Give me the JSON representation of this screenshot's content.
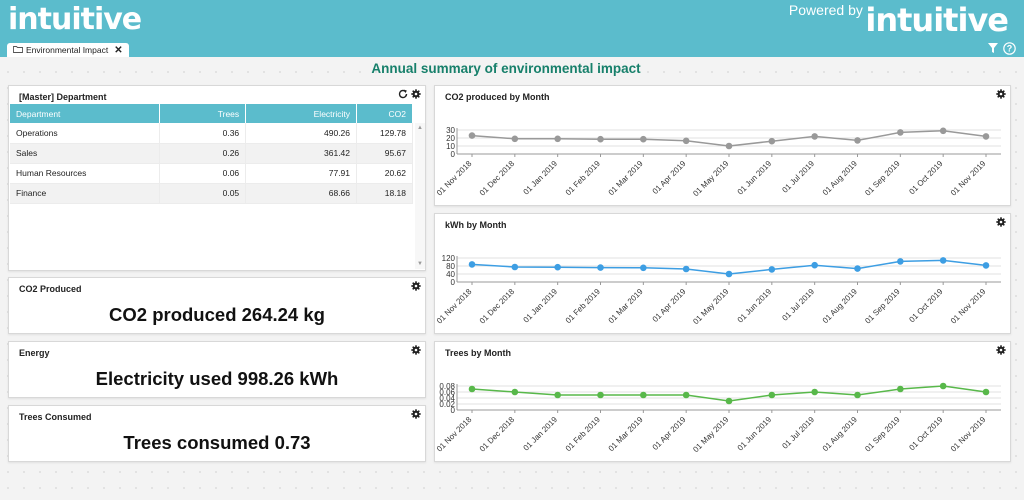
{
  "header": {
    "logo_text": "intuitive",
    "powered_by": "Powered by",
    "powered_logo": "intuitive"
  },
  "tab": {
    "label": "Environmental Impact",
    "icon": "folder-icon"
  },
  "page": {
    "title": "Annual summary of environmental impact"
  },
  "department_panel": {
    "title": "[Master] Department",
    "columns": [
      "Department",
      "Trees",
      "Electricity",
      "CO2"
    ],
    "rows": [
      [
        "Operations",
        "0.36",
        "490.26",
        "129.78"
      ],
      [
        "Sales",
        "0.26",
        "361.42",
        "95.67"
      ],
      [
        "Human Resources",
        "0.06",
        "77.91",
        "20.62"
      ],
      [
        "Finance",
        "0.05",
        "68.66",
        "18.18"
      ]
    ]
  },
  "kpis": {
    "co2": {
      "title": "CO2 Produced",
      "text": "CO2 produced 264.24 kg"
    },
    "energy": {
      "title": "Energy",
      "text": "Electricity used 998.26 kWh"
    },
    "trees": {
      "title": "Trees Consumed",
      "text": "Trees consumed 0.73"
    }
  },
  "chart_data": [
    {
      "type": "line",
      "title": "CO2 produced by Month",
      "categories": [
        "01 Nov 2018",
        "01 Dec 2018",
        "01 Jan 2019",
        "01 Feb 2019",
        "01 Mar 2019",
        "01 Apr 2019",
        "01 May 2019",
        "01 Jun 2019",
        "01 Jul 2019",
        "01 Aug 2019",
        "01 Sep 2019",
        "01 Oct 2019",
        "01 Nov 2019"
      ],
      "values": [
        23,
        19,
        19,
        18.5,
        18.5,
        16.5,
        10,
        16,
        22,
        17,
        27,
        29,
        22
      ],
      "yticks": [
        0,
        10,
        20,
        30
      ],
      "ylim": [
        0,
        30
      ],
      "color": "#999999"
    },
    {
      "type": "line",
      "title": "kWh by Month",
      "categories": [
        "01 Nov 2018",
        "01 Dec 2018",
        "01 Jan 2019",
        "01 Feb 2019",
        "01 Mar 2019",
        "01 Apr 2019",
        "01 May 2019",
        "01 Jun 2019",
        "01 Jul 2019",
        "01 Aug 2019",
        "01 Sep 2019",
        "01 Oct 2019",
        "01 Nov 2019"
      ],
      "values": [
        88,
        75,
        74,
        72,
        71,
        65,
        40,
        63,
        84,
        67,
        103,
        108,
        83
      ],
      "yticks": [
        0,
        40,
        80,
        120
      ],
      "ylim": [
        0,
        120
      ],
      "color": "#3d9ee3"
    },
    {
      "type": "line",
      "title": "Trees by Month",
      "categories": [
        "01 Nov 2018",
        "01 Dec 2018",
        "01 Jan 2019",
        "01 Feb 2019",
        "01 Mar 2019",
        "01 Apr 2019",
        "01 May 2019",
        "01 Jun 2019",
        "01 Jul 2019",
        "01 Aug 2019",
        "01 Sep 2019",
        "01 Oct 2019",
        "01 Nov 2019"
      ],
      "values": [
        0.07,
        0.06,
        0.05,
        0.05,
        0.05,
        0.05,
        0.03,
        0.05,
        0.06,
        0.05,
        0.07,
        0.08,
        0.06
      ],
      "yticks": [
        "0",
        "0.02",
        "0.04",
        "0.06",
        "0.08"
      ],
      "ylim": [
        0,
        0.08
      ],
      "color": "#58b84a"
    }
  ]
}
